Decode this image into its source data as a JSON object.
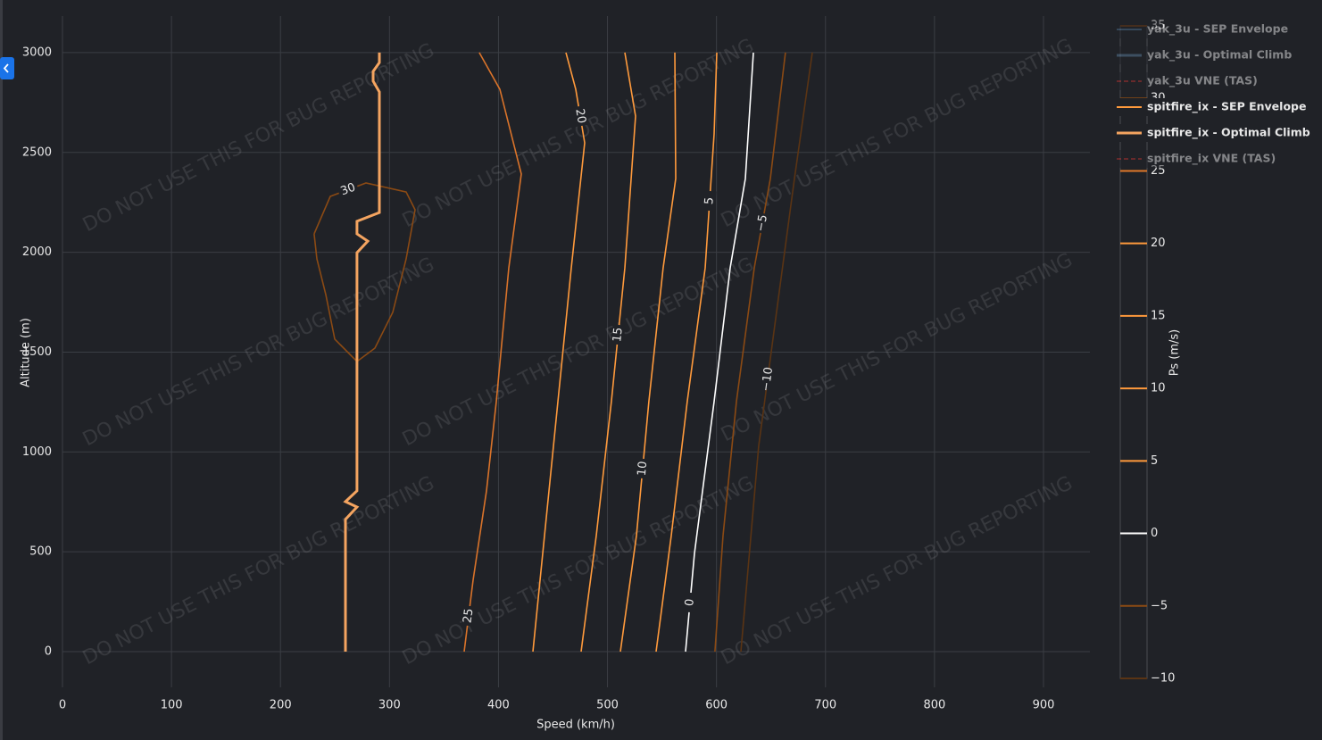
{
  "chart_data": {
    "type": "contour",
    "watermark": "DO NOT USE THIS FOR BUG REPORTING",
    "x_label": "Speed (km/h)",
    "y_label": "Altitude (m)",
    "xlim": [
      0,
      942.6
    ],
    "ylim": [
      -179,
      3183
    ],
    "xticks": [
      0,
      100,
      200,
      300,
      400,
      500,
      600,
      700,
      800,
      900
    ],
    "yticks": [
      0,
      500,
      1000,
      1500,
      2000,
      2500,
      3000
    ],
    "grid": true,
    "colorbar": {
      "title": "Ps (m/s)",
      "lim": [
        -10,
        35
      ],
      "ticks": [
        {
          "value": -10,
          "label": "−10"
        },
        {
          "value": -5,
          "label": "−5"
        },
        0,
        5,
        10,
        15,
        20,
        25,
        30,
        35
      ],
      "tick_colors": [
        "#5a3414",
        "#8b4a14",
        "#ffffff",
        "#ff9a3c",
        "#ff9a3c",
        "#ff9a3c",
        "#ff9a3c",
        "#e0782a",
        "#8b4a14",
        "#6a3a14"
      ]
    },
    "contours": [
      {
        "level": 30,
        "color": "#8b4a14",
        "x": [
          230.9,
          245.7,
          278.4,
          315.3,
          323.5,
          315.3,
          303.0,
          286.6,
          270.2,
          249.8,
          241.6,
          233.4,
          230.9
        ],
        "y": [
          2092,
          2280,
          2347,
          2302,
          2213,
          1967,
          1699,
          1520,
          1453,
          1565,
          1788,
          1967,
          2092
        ]
      },
      {
        "level": 25,
        "color": "#d9732a",
        "x": [
          382.4,
          401.3,
          420.9,
          409.5,
          398.0,
          389.0,
          376.7,
          368.5
        ],
        "y": [
          3000,
          2816,
          2392,
          1922,
          1252,
          805,
          358,
          0
        ]
      },
      {
        "level": 20,
        "color": "#ff9a3c",
        "x": [
          461.9,
          470.9,
          479.1,
          466.8,
          454.5,
          442.2,
          431.6
        ],
        "y": [
          3000,
          2816,
          2548,
          1922,
          1252,
          581,
          0
        ]
      },
      {
        "level": 15,
        "color": "#ff9a3c",
        "x": [
          515.9,
          525.8,
          515.9,
          503.6,
          489.7,
          475.8
        ],
        "y": [
          3000,
          2682,
          1922,
          1252,
          581,
          0
        ]
      },
      {
        "level": 10,
        "color": "#ff9a3c",
        "x": [
          561.8,
          562.6,
          551.1,
          538.0,
          526.6,
          511.8
        ],
        "y": [
          3000,
          2369,
          1922,
          1252,
          581,
          0
        ]
      },
      {
        "level": 5,
        "color": "#ff9a3c",
        "x": [
          600.3,
          597.8,
          589.6,
          573.2,
          558.5,
          544.6
        ],
        "y": [
          3000,
          2593,
          1922,
          1252,
          581,
          0
        ]
      },
      {
        "level": 0,
        "color": "#ffffff",
        "x": [
          633.9,
          626.5,
          612.6,
          597.8,
          579.8,
          571.6
        ],
        "y": [
          3000,
          2369,
          1922,
          1252,
          492,
          0
        ]
      },
      {
        "level": -5,
        "label": "−5",
        "color": "#8b4a14",
        "x": [
          663.3,
          649.4,
          634.7,
          618.3,
          606.0,
          598.6
        ],
        "y": [
          3000,
          2369,
          1922,
          1252,
          581,
          0
        ]
      },
      {
        "level": -10,
        "label": "−10",
        "color": "#5a3414",
        "x": [
          687.9,
          671.5,
          655.1,
          638.7,
          622.4
        ],
        "y": [
          3000,
          2369,
          1699,
          1028,
          0
        ]
      }
    ],
    "series": [
      {
        "name": "yak_3u - SEP Envelope",
        "color": "#4d6e8e",
        "visible": false
      },
      {
        "name": "yak_3u - Optimal Climb",
        "color": "#5b7d9c",
        "visible": false
      },
      {
        "name": "yak_3u VNE (TAS)",
        "color": "#b03030",
        "dash": true,
        "visible": false
      },
      {
        "name": "spitfire_ix - SEP Envelope",
        "color": "#ff9a3c",
        "visible": true
      },
      {
        "name": "spitfire_ix - Optimal Climb",
        "color": "#f4a460",
        "visible": true,
        "x": [
          259.6,
          259.6,
          270.2,
          259.6,
          270.2,
          270.2,
          280.1,
          270.2,
          270.2,
          290.7,
          290.7,
          285.0,
          285.0,
          290.7,
          290.7
        ],
        "y": [
          0,
          662,
          724,
          751,
          805,
          1998,
          2056,
          2092,
          2155,
          2199,
          2803,
          2857,
          2906,
          2950,
          3000
        ]
      },
      {
        "name": "spitfire_ix VNE (TAS)",
        "color": "#b03030",
        "dash": true,
        "visible": false
      }
    ]
  }
}
